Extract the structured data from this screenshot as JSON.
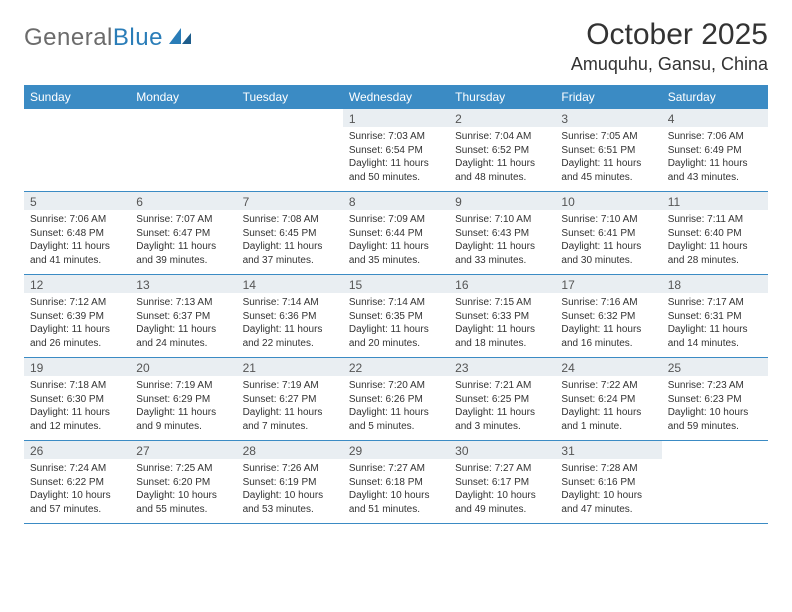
{
  "logo": {
    "text_general": "General",
    "text_blue": "Blue"
  },
  "header": {
    "month_title": "October 2025",
    "location": "Amuquhu, Gansu, China"
  },
  "colors": {
    "header_bg": "#3b8bc4",
    "header_text": "#ffffff",
    "daynum_bg": "#e9eef2",
    "border": "#3b8bc4",
    "logo_grey": "#6b6b6b",
    "logo_blue": "#2a7db8"
  },
  "day_names": [
    "Sunday",
    "Monday",
    "Tuesday",
    "Wednesday",
    "Thursday",
    "Friday",
    "Saturday"
  ],
  "weeks": [
    [
      {
        "empty": true
      },
      {
        "empty": true
      },
      {
        "empty": true
      },
      {
        "day": "1",
        "sunrise": "Sunrise: 7:03 AM",
        "sunset": "Sunset: 6:54 PM",
        "daylight": "Daylight: 11 hours and 50 minutes."
      },
      {
        "day": "2",
        "sunrise": "Sunrise: 7:04 AM",
        "sunset": "Sunset: 6:52 PM",
        "daylight": "Daylight: 11 hours and 48 minutes."
      },
      {
        "day": "3",
        "sunrise": "Sunrise: 7:05 AM",
        "sunset": "Sunset: 6:51 PM",
        "daylight": "Daylight: 11 hours and 45 minutes."
      },
      {
        "day": "4",
        "sunrise": "Sunrise: 7:06 AM",
        "sunset": "Sunset: 6:49 PM",
        "daylight": "Daylight: 11 hours and 43 minutes."
      }
    ],
    [
      {
        "day": "5",
        "sunrise": "Sunrise: 7:06 AM",
        "sunset": "Sunset: 6:48 PM",
        "daylight": "Daylight: 11 hours and 41 minutes."
      },
      {
        "day": "6",
        "sunrise": "Sunrise: 7:07 AM",
        "sunset": "Sunset: 6:47 PM",
        "daylight": "Daylight: 11 hours and 39 minutes."
      },
      {
        "day": "7",
        "sunrise": "Sunrise: 7:08 AM",
        "sunset": "Sunset: 6:45 PM",
        "daylight": "Daylight: 11 hours and 37 minutes."
      },
      {
        "day": "8",
        "sunrise": "Sunrise: 7:09 AM",
        "sunset": "Sunset: 6:44 PM",
        "daylight": "Daylight: 11 hours and 35 minutes."
      },
      {
        "day": "9",
        "sunrise": "Sunrise: 7:10 AM",
        "sunset": "Sunset: 6:43 PM",
        "daylight": "Daylight: 11 hours and 33 minutes."
      },
      {
        "day": "10",
        "sunrise": "Sunrise: 7:10 AM",
        "sunset": "Sunset: 6:41 PM",
        "daylight": "Daylight: 11 hours and 30 minutes."
      },
      {
        "day": "11",
        "sunrise": "Sunrise: 7:11 AM",
        "sunset": "Sunset: 6:40 PM",
        "daylight": "Daylight: 11 hours and 28 minutes."
      }
    ],
    [
      {
        "day": "12",
        "sunrise": "Sunrise: 7:12 AM",
        "sunset": "Sunset: 6:39 PM",
        "daylight": "Daylight: 11 hours and 26 minutes."
      },
      {
        "day": "13",
        "sunrise": "Sunrise: 7:13 AM",
        "sunset": "Sunset: 6:37 PM",
        "daylight": "Daylight: 11 hours and 24 minutes."
      },
      {
        "day": "14",
        "sunrise": "Sunrise: 7:14 AM",
        "sunset": "Sunset: 6:36 PM",
        "daylight": "Daylight: 11 hours and 22 minutes."
      },
      {
        "day": "15",
        "sunrise": "Sunrise: 7:14 AM",
        "sunset": "Sunset: 6:35 PM",
        "daylight": "Daylight: 11 hours and 20 minutes."
      },
      {
        "day": "16",
        "sunrise": "Sunrise: 7:15 AM",
        "sunset": "Sunset: 6:33 PM",
        "daylight": "Daylight: 11 hours and 18 minutes."
      },
      {
        "day": "17",
        "sunrise": "Sunrise: 7:16 AM",
        "sunset": "Sunset: 6:32 PM",
        "daylight": "Daylight: 11 hours and 16 minutes."
      },
      {
        "day": "18",
        "sunrise": "Sunrise: 7:17 AM",
        "sunset": "Sunset: 6:31 PM",
        "daylight": "Daylight: 11 hours and 14 minutes."
      }
    ],
    [
      {
        "day": "19",
        "sunrise": "Sunrise: 7:18 AM",
        "sunset": "Sunset: 6:30 PM",
        "daylight": "Daylight: 11 hours and 12 minutes."
      },
      {
        "day": "20",
        "sunrise": "Sunrise: 7:19 AM",
        "sunset": "Sunset: 6:29 PM",
        "daylight": "Daylight: 11 hours and 9 minutes."
      },
      {
        "day": "21",
        "sunrise": "Sunrise: 7:19 AM",
        "sunset": "Sunset: 6:27 PM",
        "daylight": "Daylight: 11 hours and 7 minutes."
      },
      {
        "day": "22",
        "sunrise": "Sunrise: 7:20 AM",
        "sunset": "Sunset: 6:26 PM",
        "daylight": "Daylight: 11 hours and 5 minutes."
      },
      {
        "day": "23",
        "sunrise": "Sunrise: 7:21 AM",
        "sunset": "Sunset: 6:25 PM",
        "daylight": "Daylight: 11 hours and 3 minutes."
      },
      {
        "day": "24",
        "sunrise": "Sunrise: 7:22 AM",
        "sunset": "Sunset: 6:24 PM",
        "daylight": "Daylight: 11 hours and 1 minute."
      },
      {
        "day": "25",
        "sunrise": "Sunrise: 7:23 AM",
        "sunset": "Sunset: 6:23 PM",
        "daylight": "Daylight: 10 hours and 59 minutes."
      }
    ],
    [
      {
        "day": "26",
        "sunrise": "Sunrise: 7:24 AM",
        "sunset": "Sunset: 6:22 PM",
        "daylight": "Daylight: 10 hours and 57 minutes."
      },
      {
        "day": "27",
        "sunrise": "Sunrise: 7:25 AM",
        "sunset": "Sunset: 6:20 PM",
        "daylight": "Daylight: 10 hours and 55 minutes."
      },
      {
        "day": "28",
        "sunrise": "Sunrise: 7:26 AM",
        "sunset": "Sunset: 6:19 PM",
        "daylight": "Daylight: 10 hours and 53 minutes."
      },
      {
        "day": "29",
        "sunrise": "Sunrise: 7:27 AM",
        "sunset": "Sunset: 6:18 PM",
        "daylight": "Daylight: 10 hours and 51 minutes."
      },
      {
        "day": "30",
        "sunrise": "Sunrise: 7:27 AM",
        "sunset": "Sunset: 6:17 PM",
        "daylight": "Daylight: 10 hours and 49 minutes."
      },
      {
        "day": "31",
        "sunrise": "Sunrise: 7:28 AM",
        "sunset": "Sunset: 6:16 PM",
        "daylight": "Daylight: 10 hours and 47 minutes."
      },
      {
        "empty": true
      }
    ]
  ]
}
